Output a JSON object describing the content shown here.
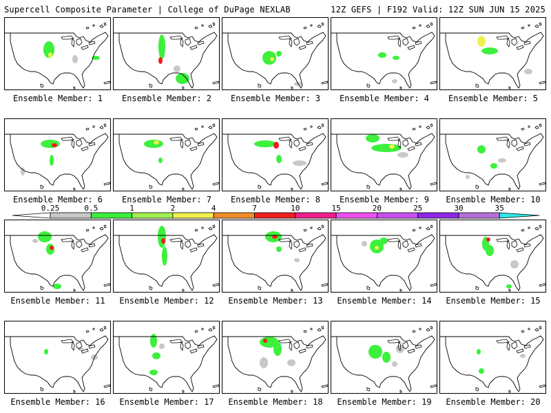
{
  "header": {
    "left": "Supercell Composite Parameter | College of DuPage NEXLAB",
    "right": "12Z GEFS | F192 Valid: 12Z SUN JUN 15 2025"
  },
  "colorbar": {
    "ticks": [
      "0.25",
      "0.5",
      "1",
      "2",
      "4",
      "7",
      "10",
      "15",
      "20",
      "25",
      "30",
      "35"
    ],
    "colors": [
      "#c8c8c8",
      "#3cf03c",
      "#a0f050",
      "#f0f050",
      "#f08c28",
      "#f01e1e",
      "#f01e8c",
      "#f050f0",
      "#c850f0",
      "#8c28e6",
      "#b46edc",
      "#30e6e6"
    ]
  },
  "members": [
    {
      "label": "Ensemble Member: 1"
    },
    {
      "label": "Ensemble Member: 2"
    },
    {
      "label": "Ensemble Member: 3"
    },
    {
      "label": "Ensemble Member: 4"
    },
    {
      "label": "Ensemble Member: 5"
    },
    {
      "label": "Ensemble Member: 6"
    },
    {
      "label": "Ensemble Member: 7"
    },
    {
      "label": "Ensemble Member: 8"
    },
    {
      "label": "Ensemble Member: 9"
    },
    {
      "label": "Ensemble Member: 10"
    },
    {
      "label": "Ensemble Member: 11"
    },
    {
      "label": "Ensemble Member: 12"
    },
    {
      "label": "Ensemble Member: 13"
    },
    {
      "label": "Ensemble Member: 14"
    },
    {
      "label": "Ensemble Member: 15"
    },
    {
      "label": "Ensemble Member: 16"
    },
    {
      "label": "Ensemble Member: 17"
    },
    {
      "label": "Ensemble Member: 18"
    },
    {
      "label": "Ensemble Member: 19"
    },
    {
      "label": "Ensemble Member: 20"
    }
  ]
}
